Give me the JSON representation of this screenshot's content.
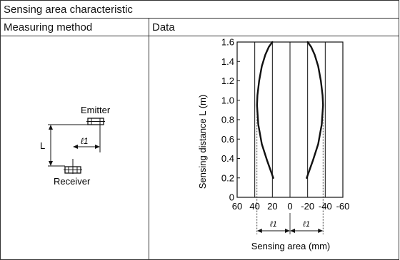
{
  "table": {
    "title": "Sensing area characteristic",
    "col_method": "Measuring method",
    "col_data": "Data"
  },
  "diagram": {
    "emitter_label": "Emitter",
    "receiver_label": "Receiver",
    "distance_label": "L",
    "offset_label": "ℓ1"
  },
  "chart_data": {
    "type": "line",
    "xlabel": "Sensing area (mm)",
    "ylabel": "Sensing distance L (m)",
    "xlim": [
      60,
      -60
    ],
    "ylim": [
      0,
      1.6
    ],
    "x_ticks": [
      "60",
      "40",
      "20",
      "0",
      "-20",
      "-40",
      "-60"
    ],
    "y_ticks": [
      "0",
      "0.2",
      "0.4",
      "0.6",
      "0.8",
      "1.0",
      "1.2",
      "1.4",
      "1.6"
    ],
    "bracket_labels": [
      "ℓ1",
      "ℓ1"
    ],
    "series": [
      {
        "points": [
          [
            20,
            1.6
          ],
          [
            24,
            1.55
          ],
          [
            28,
            1.47
          ],
          [
            32,
            1.35
          ],
          [
            35,
            1.2
          ],
          [
            37,
            1.05
          ],
          [
            37.5,
            0.95
          ],
          [
            36,
            0.75
          ],
          [
            32,
            0.55
          ],
          [
            26,
            0.38
          ],
          [
            19,
            0.2
          ]
        ]
      },
      {
        "points": [
          [
            -20,
            1.6
          ],
          [
            -24,
            1.55
          ],
          [
            -28,
            1.47
          ],
          [
            -32,
            1.35
          ],
          [
            -35,
            1.2
          ],
          [
            -37,
            1.05
          ],
          [
            -37.5,
            0.95
          ],
          [
            -36,
            0.75
          ],
          [
            -32,
            0.55
          ],
          [
            -26,
            0.38
          ],
          [
            -19,
            0.2
          ]
        ]
      }
    ]
  }
}
